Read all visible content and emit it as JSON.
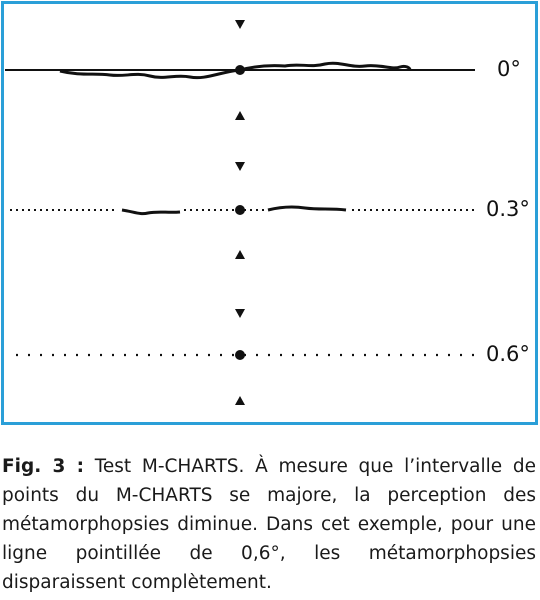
{
  "figure": {
    "lines": [
      {
        "label": "0°"
      },
      {
        "label": "0.3°"
      },
      {
        "label": "0.6°"
      }
    ]
  },
  "caption": {
    "label": "Fig. 3 :",
    "text": "Test M-CHARTS. À mesure que l’intervalle de points du M-CHARTS se majore, la perception des métamorphopsies diminue. Dans cet exemple, pour une ligne pointillée de 0,6°, les métamorphopsies disparaissent complètement."
  }
}
